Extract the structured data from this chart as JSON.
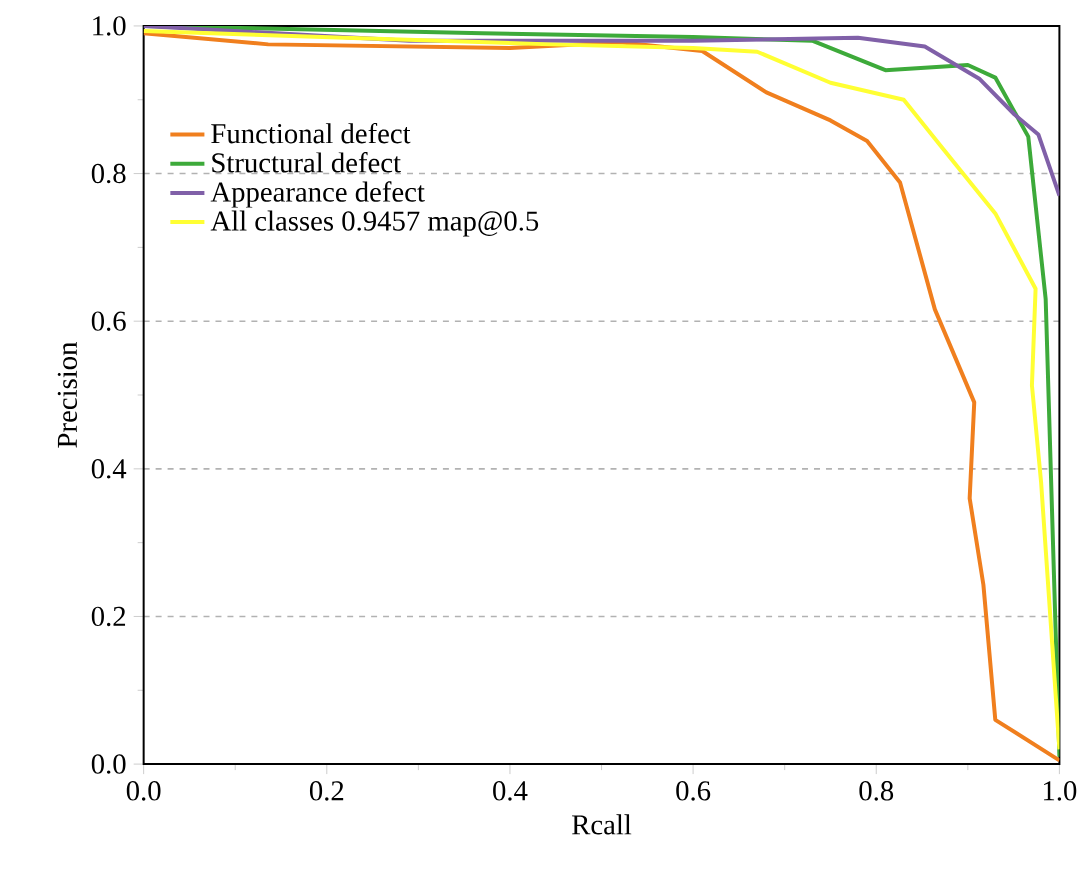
{
  "chart_data": {
    "type": "line",
    "xlabel": "Rcall",
    "ylabel": "Precision",
    "xlim": [
      0,
      1
    ],
    "ylim": [
      0,
      1
    ],
    "xticks": [
      {
        "value": 0,
        "label": "0.0"
      },
      0.2,
      0.4,
      0.6,
      0.8,
      {
        "value": 1,
        "label": "1.0"
      }
    ],
    "yticks": [
      {
        "value": 0,
        "label": "0.0"
      },
      0.2,
      0.4,
      0.6,
      0.8,
      {
        "value": 1,
        "label": "1.0"
      }
    ],
    "grid": "y",
    "legend": "top left",
    "line_style": "solid",
    "marker": "none",
    "series": [
      {
        "name": "Functional defect",
        "color": "#f07f1e",
        "x": [
          0,
          0.136,
          0.4,
          0.52,
          0.61,
          0.68,
          0.75,
          0.79,
          0.826,
          0.864,
          0.907,
          0.902,
          0.917,
          0.93,
          1.0
        ],
        "values": [
          0.99,
          0.975,
          0.97,
          0.978,
          0.966,
          0.91,
          0.872,
          0.844,
          0.788,
          0.616,
          0.49,
          0.36,
          0.243,
          0.06,
          0.005
        ]
      },
      {
        "name": "Structural defect",
        "color": "#3daa3a",
        "x": [
          0,
          0.37,
          0.6,
          0.73,
          0.81,
          0.9,
          0.93,
          0.966,
          0.985,
          1.0
        ],
        "values": [
          1.0,
          0.99,
          0.985,
          0.98,
          0.94,
          0.947,
          0.93,
          0.85,
          0.63,
          0.01
        ]
      },
      {
        "name": "Appearance defect",
        "color": "#8060a8",
        "x": [
          0,
          0.29,
          0.6,
          0.78,
          0.853,
          0.913,
          0.951,
          0.977,
          1.0
        ],
        "values": [
          1.0,
          0.98,
          0.98,
          0.984,
          0.972,
          0.928,
          0.88,
          0.853,
          0.77
        ]
      },
      {
        "name": "All classes 0.9457 map@0.5",
        "color": "#ffff33",
        "x": [
          0,
          0.22,
          0.445,
          0.6,
          0.67,
          0.75,
          0.83,
          0.872,
          0.93,
          0.974,
          0.97,
          0.98,
          1.0
        ],
        "values": [
          0.993,
          0.984,
          0.975,
          0.97,
          0.965,
          0.923,
          0.9,
          0.835,
          0.746,
          0.644,
          0.513,
          0.382,
          0.02
        ]
      }
    ]
  }
}
